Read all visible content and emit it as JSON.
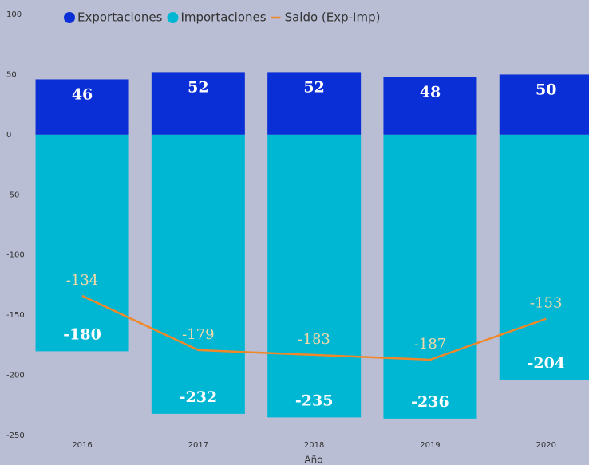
{
  "chart_data": {
    "type": "bar",
    "stacked": true,
    "x_label": "Año",
    "categories": [
      "2016",
      "2017",
      "2018",
      "2019",
      "2020"
    ],
    "series": [
      {
        "name": "Exportaciones",
        "color": "#0b2fd6",
        "values": [
          46,
          52,
          52,
          48,
          50
        ]
      },
      {
        "name": "Importaciones",
        "color": "#00b7d3",
        "values": [
          -180,
          -232,
          -235,
          -236,
          -204
        ]
      },
      {
        "name": "Saldo (Exp-Imp)",
        "type": "line",
        "color": "#f0882a",
        "values": [
          -134,
          -179,
          -183,
          -187,
          -153
        ]
      }
    ],
    "ylim": [
      -250,
      100
    ],
    "yticks": [
      -250,
      -200,
      -150,
      -100,
      -50,
      0,
      50,
      100
    ],
    "legend": "top"
  }
}
